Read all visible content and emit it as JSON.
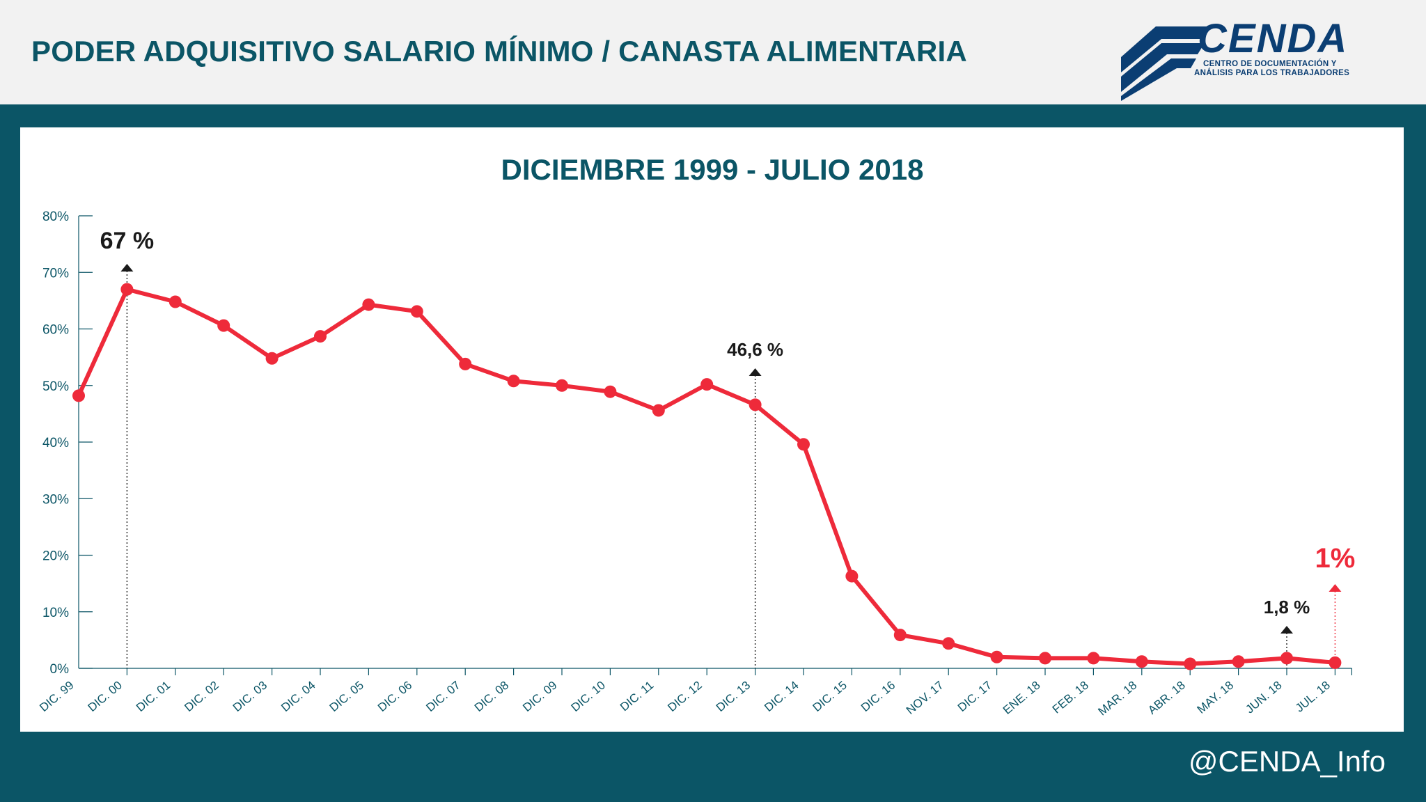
{
  "header": {
    "title": "PODER ADQUISITIVO SALARIO MÍNIMO / CANASTA ALIMENTARIA"
  },
  "logo": {
    "word": "CENDA",
    "subtitle_line1": "CENTRO DE DOCUMENTACIÓN Y",
    "subtitle_line2": "ANÁLISIS PARA LOS TRABAJADORES"
  },
  "footer": {
    "handle": "@CENDA_Info"
  },
  "colors": {
    "brand": "#0b5566",
    "logo": "#0b3e73",
    "series": "#ee2a3a",
    "annotation": "#1a1a1a"
  },
  "chart_data": {
    "type": "line",
    "title": "DICIEMBRE 1999 - JULIO 2018",
    "xlabel": "",
    "ylabel": "",
    "ylim": [
      0,
      80
    ],
    "yticks": [
      "0%",
      "10%",
      "20%",
      "30%",
      "40%",
      "50%",
      "60%",
      "70%",
      "80%"
    ],
    "grid": false,
    "categories": [
      "DIC. 99",
      "DIC. 00",
      "DIC. 01",
      "DIC. 02",
      "DIC. 03",
      "DIC. 04",
      "DIC. 05",
      "DIC. 06",
      "DIC. 07",
      "DIC. 08",
      "DIC. 09",
      "DIC. 10",
      "DIC. 11",
      "DIC. 12",
      "DIC. 13",
      "DIC. 14",
      "DIC. 15",
      "DIC. 16",
      "NOV. 17",
      "DIC. 17",
      "ENE. 18",
      "FEB. 18",
      "MAR. 18",
      "ABR. 18",
      "MAY. 18",
      "JUN. 18",
      "JUL. 18"
    ],
    "series": [
      {
        "values": [
          48.2,
          67,
          64.8,
          60.6,
          54.8,
          58.7,
          64.3,
          63.1,
          53.8,
          50.8,
          50.0,
          48.9,
          45.6,
          50.2,
          46.6,
          39.6,
          16.3,
          5.9,
          4.4,
          2.0,
          1.8,
          1.8,
          1.2,
          0.8,
          1.2,
          1.8,
          1.0
        ]
      }
    ],
    "annotations": [
      {
        "category": "DIC. 00",
        "label": "67 %",
        "style": "black-large"
      },
      {
        "category": "DIC. 13",
        "label": "46,6 %",
        "style": "black"
      },
      {
        "category": "JUN. 18",
        "label": "1,8 %",
        "style": "black"
      },
      {
        "category": "JUL. 18",
        "label": "1%",
        "style": "red-large"
      }
    ]
  }
}
